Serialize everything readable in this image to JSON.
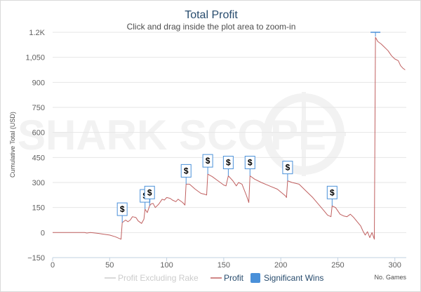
{
  "watermark": "SHARK SCOPE",
  "chart_data": {
    "type": "line",
    "title": "Total Profit",
    "subtitle": "Click and drag inside the plot area to zoom-in",
    "xlabel": "No. Games",
    "ylabel": "Cumulative Total (USD)",
    "xlim": [
      0,
      310
    ],
    "ylim": [
      -150,
      1200
    ],
    "x_ticks": [
      0,
      50,
      100,
      150,
      200,
      250,
      300
    ],
    "y_ticks": [
      -150,
      0,
      150,
      300,
      450,
      600,
      750,
      900,
      1050,
      1200
    ],
    "y_tick_labels": [
      "−150",
      "0",
      "150",
      "300",
      "450",
      "600",
      "750",
      "900",
      "1,050",
      "1.2K"
    ],
    "grid": "horizontal",
    "legend_position": "bottom-center",
    "series": [
      {
        "name": "Profit Excluding Rake",
        "color": "#cccccc",
        "points": []
      },
      {
        "name": "Profit",
        "color": "#c06060",
        "points": [
          [
            0,
            0
          ],
          [
            10,
            0
          ],
          [
            20,
            0
          ],
          [
            28,
            0
          ],
          [
            30,
            -3
          ],
          [
            33,
            0
          ],
          [
            36,
            -2
          ],
          [
            40,
            -5
          ],
          [
            45,
            -10
          ],
          [
            50,
            -15
          ],
          [
            55,
            -25
          ],
          [
            60,
            -40
          ],
          [
            61,
            60
          ],
          [
            64,
            75
          ],
          [
            66,
            65
          ],
          [
            68,
            75
          ],
          [
            70,
            95
          ],
          [
            73,
            90
          ],
          [
            75,
            70
          ],
          [
            78,
            55
          ],
          [
            80,
            80
          ],
          [
            81,
            140
          ],
          [
            83,
            120
          ],
          [
            85,
            160
          ],
          [
            86,
            170
          ],
          [
            88,
            175
          ],
          [
            90,
            150
          ],
          [
            93,
            170
          ],
          [
            96,
            200
          ],
          [
            98,
            195
          ],
          [
            100,
            210
          ],
          [
            103,
            205
          ],
          [
            105,
            195
          ],
          [
            108,
            185
          ],
          [
            110,
            200
          ],
          [
            114,
            180
          ],
          [
            116,
            165
          ],
          [
            117,
            290
          ],
          [
            120,
            290
          ],
          [
            125,
            260
          ],
          [
            130,
            235
          ],
          [
            133,
            230
          ],
          [
            135,
            225
          ],
          [
            136,
            350
          ],
          [
            140,
            335
          ],
          [
            145,
            310
          ],
          [
            150,
            285
          ],
          [
            152,
            280
          ],
          [
            154,
            340
          ],
          [
            158,
            310
          ],
          [
            161,
            280
          ],
          [
            163,
            300
          ],
          [
            166,
            290
          ],
          [
            170,
            220
          ],
          [
            172,
            180
          ],
          [
            173,
            340
          ],
          [
            177,
            320
          ],
          [
            183,
            300
          ],
          [
            190,
            280
          ],
          [
            197,
            260
          ],
          [
            204,
            220
          ],
          [
            205,
            210
          ],
          [
            206,
            310
          ],
          [
            210,
            300
          ],
          [
            216,
            290
          ],
          [
            222,
            250
          ],
          [
            228,
            210
          ],
          [
            233,
            170
          ],
          [
            238,
            130
          ],
          [
            241,
            105
          ],
          [
            244,
            95
          ],
          [
            245,
            160
          ],
          [
            248,
            150
          ],
          [
            252,
            110
          ],
          [
            255,
            100
          ],
          [
            258,
            95
          ],
          [
            261,
            110
          ],
          [
            264,
            90
          ],
          [
            267,
            65
          ],
          [
            270,
            40
          ],
          [
            272,
            10
          ],
          [
            274,
            -15
          ],
          [
            276,
            5
          ],
          [
            278,
            -30
          ],
          [
            280,
            0
          ],
          [
            282,
            -40
          ],
          [
            283,
            1170
          ],
          [
            285,
            1145
          ],
          [
            288,
            1130
          ],
          [
            291,
            1110
          ],
          [
            294,
            1090
          ],
          [
            297,
            1060
          ],
          [
            300,
            1040
          ],
          [
            303,
            1030
          ],
          [
            305,
            1000
          ],
          [
            307,
            985
          ],
          [
            309,
            975
          ]
        ]
      }
    ],
    "significant_wins": {
      "name": "Significant Wins",
      "color": "#4a90d9",
      "marker_label": "$",
      "games": [
        61,
        81,
        85,
        117,
        136,
        154,
        173,
        206,
        245
      ]
    },
    "significant_win_top": {
      "game": 283,
      "value": 1200
    }
  }
}
